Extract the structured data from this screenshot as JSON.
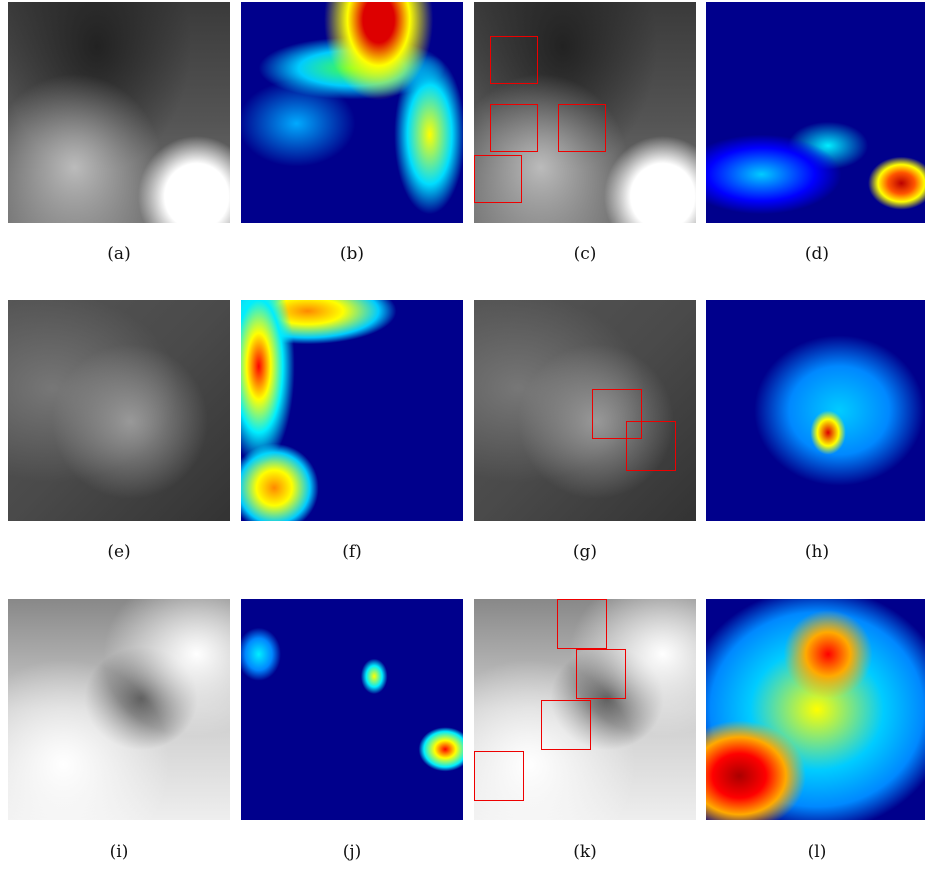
{
  "panels": [
    {
      "caption": "(a)"
    },
    {
      "caption": "(b)"
    },
    {
      "caption": "(c)"
    },
    {
      "caption": "(d)"
    },
    {
      "caption": "(e)"
    },
    {
      "caption": "(f)"
    },
    {
      "caption": "(g)"
    },
    {
      "caption": "(h)"
    },
    {
      "caption": "(i)"
    },
    {
      "caption": "(j)"
    },
    {
      "caption": "(k)"
    },
    {
      "caption": "(l)"
    }
  ]
}
